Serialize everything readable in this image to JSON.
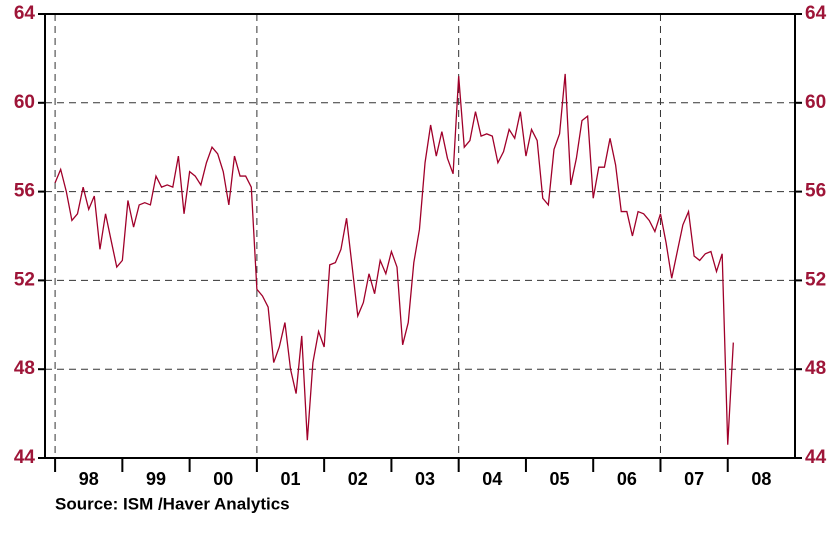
{
  "chart_data": {
    "type": "line",
    "source": "Source:  ISM /Haver Analytics",
    "color": "#a0002a",
    "xlim": [
      1997.85,
      2009.0
    ],
    "ylim": [
      44,
      64
    ],
    "yticks": [
      44,
      48,
      52,
      56,
      60,
      64
    ],
    "xticks": [
      1998,
      1999,
      2000,
      2001,
      2002,
      2003,
      2004,
      2005,
      2006,
      2007,
      2008
    ],
    "xtick_labels": [
      {
        "value": 1998.5,
        "label": "98"
      },
      {
        "value": 1999.5,
        "label": "99"
      },
      {
        "value": 2000.5,
        "label": "00"
      },
      {
        "value": 2001.5,
        "label": "01"
      },
      {
        "value": 2002.5,
        "label": "02"
      },
      {
        "value": 2003.5,
        "label": "03"
      },
      {
        "value": 2004.5,
        "label": "04"
      },
      {
        "value": 2005.5,
        "label": "05"
      },
      {
        "value": 2006.5,
        "label": "06"
      },
      {
        "value": 2007.5,
        "label": "07"
      },
      {
        "value": 2008.5,
        "label": "08"
      }
    ],
    "xgrid": [
      1998,
      2001,
      2004,
      2007
    ],
    "grid": true,
    "x": [
      1998,
      1998.083,
      1998.167,
      1998.25,
      1998.333,
      1998.417,
      1998.5,
      1998.583,
      1998.667,
      1998.75,
      1998.833,
      1998.917,
      1999,
      1999.083,
      1999.167,
      1999.25,
      1999.333,
      1999.417,
      1999.5,
      1999.583,
      1999.667,
      1999.75,
      1999.833,
      1999.917,
      2000,
      2000.083,
      2000.167,
      2000.25,
      2000.333,
      2000.417,
      2000.5,
      2000.583,
      2000.667,
      2000.75,
      2000.833,
      2000.917,
      2001,
      2001.083,
      2001.167,
      2001.25,
      2001.333,
      2001.417,
      2001.5,
      2001.583,
      2001.667,
      2001.75,
      2001.833,
      2001.917,
      2002,
      2002.083,
      2002.167,
      2002.25,
      2002.333,
      2002.417,
      2002.5,
      2002.583,
      2002.667,
      2002.75,
      2002.833,
      2002.917,
      2003,
      2003.083,
      2003.167,
      2003.25,
      2003.333,
      2003.417,
      2003.5,
      2003.583,
      2003.667,
      2003.75,
      2003.833,
      2003.917,
      2004,
      2004.083,
      2004.167,
      2004.25,
      2004.333,
      2004.417,
      2004.5,
      2004.583,
      2004.667,
      2004.75,
      2004.833,
      2004.917,
      2005,
      2005.083,
      2005.167,
      2005.25,
      2005.333,
      2005.417,
      2005.5,
      2005.583,
      2005.667,
      2005.75,
      2005.833,
      2005.917,
      2006,
      2006.083,
      2006.167,
      2006.25,
      2006.333,
      2006.417,
      2006.5,
      2006.583,
      2006.667,
      2006.75,
      2006.833,
      2006.917,
      2007,
      2007.083,
      2007.167,
      2007.25,
      2007.333,
      2007.417,
      2007.5,
      2007.583,
      2007.667,
      2007.75,
      2007.833,
      2007.917,
      2008,
      2008.083
    ],
    "values": [
      56.4,
      57.0,
      56.0,
      54.7,
      55.0,
      56.2,
      55.2,
      55.8,
      53.4,
      55.0,
      53.8,
      52.6,
      52.9,
      55.6,
      54.4,
      55.4,
      55.5,
      55.4,
      56.7,
      56.2,
      56.3,
      56.2,
      57.6,
      55.0,
      56.9,
      56.7,
      56.3,
      57.3,
      58.0,
      57.7,
      56.9,
      55.4,
      57.6,
      56.7,
      56.7,
      56.2,
      51.6,
      51.3,
      50.8,
      48.3,
      49.0,
      50.1,
      48.0,
      46.9,
      49.5,
      44.8,
      48.3,
      49.7,
      49.0,
      52.7,
      52.8,
      53.4,
      54.8,
      52.6,
      50.4,
      51.0,
      52.3,
      51.4,
      52.9,
      52.3,
      53.3,
      52.6,
      49.1,
      50.1,
      52.8,
      54.3,
      57.3,
      59.0,
      57.6,
      58.7,
      57.5,
      56.8,
      61.2,
      58.0,
      58.3,
      59.6,
      58.5,
      58.6,
      58.5,
      57.3,
      57.8,
      58.8,
      58.4,
      59.6,
      57.6,
      58.8,
      58.3,
      55.7,
      55.4,
      57.9,
      58.6,
      61.3,
      56.3,
      57.5,
      59.2,
      59.4,
      55.7,
      57.1,
      57.1,
      58.4,
      57.2,
      55.1,
      55.1,
      54.0,
      55.1,
      55.0,
      54.7,
      54.2,
      55.0,
      53.7,
      52.1,
      53.3,
      54.5,
      55.1,
      53.1,
      52.9,
      53.2,
      53.3,
      52.4,
      53.2,
      44.6,
      49.2
    ]
  }
}
